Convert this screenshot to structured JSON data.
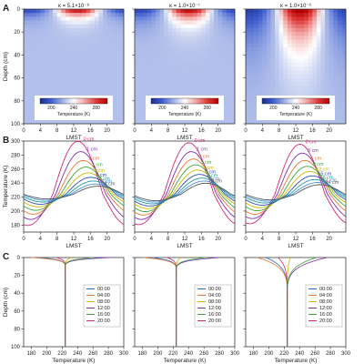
{
  "panel_labels": [
    "A",
    "B",
    "C"
  ],
  "colorbar": {
    "label": "Temperature (K)",
    "ticks": [
      "200",
      "240",
      "280"
    ],
    "min": 180,
    "max": 300,
    "colors": [
      "#1b2d8f",
      "#3f5fd0",
      "#9fb0e6",
      "#ffffff",
      "#f2a3a3",
      "#e03a3a",
      "#b30000"
    ]
  },
  "chart_data": [
    {
      "panel": "A",
      "type": "heatmap",
      "titles": [
        "κ = 5.1×10⁻⁸",
        "κ = 1.0×10⁻⁷",
        "κ = 1.0×10⁻⁶"
      ],
      "xlabel": "LMST",
      "ylabel": "Depth (cm)",
      "xlim": [
        0,
        24
      ],
      "ylim": [
        100,
        0
      ],
      "xticks": [
        "0",
        "4",
        "8",
        "12",
        "16",
        "20"
      ],
      "yticks": [
        "0",
        "20",
        "40",
        "60",
        "80",
        "100"
      ],
      "background_temperature": 224,
      "surface_max_temperature_hour": 13,
      "penetration_depth_cm": [
        6,
        9,
        26
      ]
    },
    {
      "panel": "B",
      "type": "line",
      "xlabel": "LMST",
      "ylabel": "Temperature (K)",
      "xlim": [
        0,
        24
      ],
      "ylim": [
        170,
        300
      ],
      "xticks": [
        "0",
        "4",
        "8",
        "12",
        "16",
        "20"
      ],
      "yticks": [
        "180",
        "200",
        "220",
        "240",
        "260",
        "280",
        "300"
      ],
      "series_colors": [
        "#d6267a",
        "#7b2fb0",
        "#e8762b",
        "#3aa63a",
        "#c9b800",
        "#2a4fb5",
        "#1f9aa8",
        "#4a8fd8",
        "#555555"
      ],
      "subplots": [
        {
          "labels": [
            "0 cm",
            "1 cm",
            "2 cm",
            "3 cm",
            "4 cm",
            "5 cm",
            "6 cm",
            "7 cm",
            "8 cm"
          ],
          "mean": 224,
          "series": [
            {
              "name": "0 cm",
              "amp": 72,
              "lag": 0
            },
            {
              "name": "1 cm",
              "amp": 58,
              "lag": 0.7
            },
            {
              "name": "2 cm",
              "amp": 46,
              "lag": 1.3
            },
            {
              "name": "3 cm",
              "amp": 37,
              "lag": 1.9
            },
            {
              "name": "4 cm",
              "amp": 29,
              "lag": 2.5
            },
            {
              "name": "5 cm",
              "amp": 23,
              "lag": 3.1
            },
            {
              "name": "6 cm",
              "amp": 18,
              "lag": 3.7
            },
            {
              "name": "7 cm",
              "amp": 14,
              "lag": 4.3
            },
            {
              "name": "8 cm",
              "amp": 11,
              "lag": 4.9
            }
          ]
        },
        {
          "labels": [
            "0 cm",
            "1 cm",
            "2 cm",
            "3 cm",
            "4 cm",
            "5 cm",
            "6 cm",
            "7 cm",
            "8 cm"
          ],
          "mean": 224,
          "series": [
            {
              "name": "0 cm",
              "amp": 70,
              "lag": 0
            },
            {
              "name": "1 cm",
              "amp": 58,
              "lag": 0.6
            },
            {
              "name": "2 cm",
              "amp": 48,
              "lag": 1.1
            },
            {
              "name": "3 cm",
              "amp": 40,
              "lag": 1.6
            },
            {
              "name": "4 cm",
              "amp": 33,
              "lag": 2.1
            },
            {
              "name": "5 cm",
              "amp": 27,
              "lag": 2.6
            },
            {
              "name": "6 cm",
              "amp": 22,
              "lag": 3.1
            },
            {
              "name": "7 cm",
              "amp": 18,
              "lag": 3.6
            },
            {
              "name": "8 cm",
              "amp": 15,
              "lag": 4.1
            }
          ]
        },
        {
          "labels": [
            "0 cm",
            "3 cm",
            "6 cm",
            "9 cm",
            "12 cm",
            "15 cm",
            "18 cm",
            "21 cm",
            "24 cm"
          ],
          "mean": 224,
          "series": [
            {
              "name": "0 cm",
              "amp": 68,
              "lag": 0
            },
            {
              "name": "3 cm",
              "amp": 56,
              "lag": 0.6
            },
            {
              "name": "6 cm",
              "amp": 46,
              "lag": 1.2
            },
            {
              "name": "9 cm",
              "amp": 38,
              "lag": 1.8
            },
            {
              "name": "12 cm",
              "amp": 31,
              "lag": 2.4
            },
            {
              "name": "15 cm",
              "amp": 25,
              "lag": 3.0
            },
            {
              "name": "18 cm",
              "amp": 20,
              "lag": 3.6
            },
            {
              "name": "21 cm",
              "amp": 16,
              "lag": 4.2
            },
            {
              "name": "24 cm",
              "amp": 13,
              "lag": 4.8
            }
          ]
        }
      ]
    },
    {
      "panel": "C",
      "type": "line",
      "xlabel": "Temperature (K)",
      "ylabel": "Depth (cm)",
      "xlim": [
        170,
        300
      ],
      "ylim": [
        100,
        0
      ],
      "xticks": [
        "180",
        "200",
        "220",
        "240",
        "260",
        "280",
        "300"
      ],
      "yticks": [
        "0",
        "20",
        "40",
        "60",
        "80",
        "100"
      ],
      "legend_position": "right",
      "series": [
        {
          "name": "00:00",
          "color": "#1f6fd1",
          "surface_temp": [
            190,
            192,
            196
          ]
        },
        {
          "name": "04:00",
          "color": "#e8762b",
          "surface_temp": [
            180,
            181,
            185
          ]
        },
        {
          "name": "08:00",
          "color": "#c9b800",
          "surface_temp": [
            232,
            230,
            228
          ]
        },
        {
          "name": "12:00",
          "color": "#7b2fb0",
          "surface_temp": [
            282,
            281,
            276
          ]
        },
        {
          "name": "16:00",
          "color": "#3aa63a",
          "surface_temp": [
            262,
            264,
            262
          ]
        },
        {
          "name": "20:00",
          "color": "#d6267a",
          "surface_temp": [
            212,
            212,
            212
          ]
        }
      ],
      "deep_temperature": 224,
      "decay_depth_cm": [
        2.5,
        3.4,
        10
      ]
    }
  ]
}
